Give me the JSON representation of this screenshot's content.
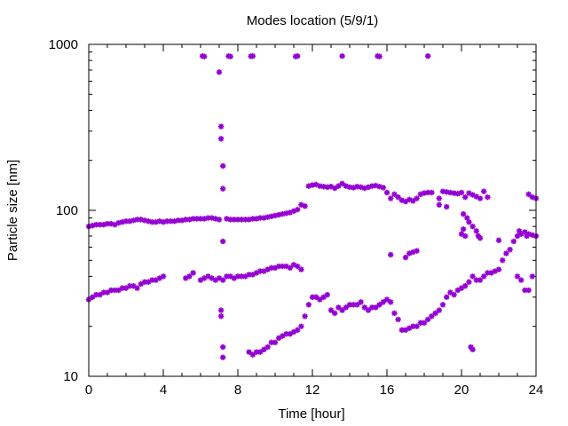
{
  "chart_data": {
    "type": "scatter",
    "title": "Modes location (5/9/1)",
    "xlabel": "Time [hour]",
    "ylabel": "Particle size [nm]",
    "xlim": [
      0,
      24
    ],
    "ylim": [
      10,
      1000
    ],
    "yscale": "log",
    "grid": false,
    "legend": "none",
    "x_ticks": [
      "0",
      "4",
      "8",
      "12",
      "16",
      "20",
      "24"
    ],
    "x_tick_values": [
      0,
      4,
      8,
      12,
      16,
      20,
      24
    ],
    "y_ticks": [
      "10",
      "100",
      "1000"
    ],
    "y_tick_values": [
      10,
      100,
      1000
    ],
    "marker_color": "#9400d3",
    "series": [
      {
        "points": [
          [
            0.0,
            80
          ],
          [
            0.2,
            81
          ],
          [
            0.4,
            82
          ],
          [
            0.6,
            82
          ],
          [
            0.8,
            82
          ],
          [
            1.0,
            83
          ],
          [
            1.2,
            83
          ],
          [
            1.4,
            82
          ],
          [
            1.6,
            84
          ],
          [
            1.8,
            85
          ],
          [
            2.0,
            86
          ],
          [
            2.2,
            86
          ],
          [
            2.4,
            87
          ],
          [
            2.6,
            88
          ],
          [
            2.8,
            88
          ],
          [
            3.0,
            87
          ],
          [
            3.2,
            86
          ],
          [
            3.4,
            85
          ],
          [
            3.6,
            85
          ],
          [
            3.8,
            86
          ],
          [
            4.0,
            85
          ],
          [
            4.2,
            86
          ],
          [
            4.4,
            86
          ],
          [
            4.6,
            86
          ],
          [
            4.8,
            87
          ],
          [
            5.0,
            87
          ],
          [
            5.2,
            88
          ],
          [
            5.4,
            88
          ],
          [
            5.6,
            89
          ],
          [
            5.8,
            89
          ],
          [
            6.0,
            89
          ],
          [
            6.2,
            89
          ],
          [
            6.4,
            90
          ],
          [
            6.6,
            90
          ],
          [
            6.8,
            89
          ],
          [
            7.0,
            88
          ],
          [
            7.4,
            89
          ],
          [
            7.6,
            88
          ],
          [
            7.8,
            88
          ],
          [
            8.0,
            88
          ],
          [
            8.2,
            88
          ],
          [
            8.4,
            88
          ],
          [
            8.6,
            88
          ],
          [
            8.8,
            89
          ],
          [
            9.0,
            89
          ],
          [
            9.2,
            90
          ],
          [
            9.4,
            90
          ],
          [
            9.6,
            91
          ],
          [
            9.8,
            92
          ],
          [
            10.0,
            93
          ],
          [
            10.2,
            94
          ],
          [
            10.4,
            95
          ],
          [
            10.6,
            96
          ],
          [
            10.8,
            97
          ],
          [
            11.0,
            99
          ],
          [
            11.2,
            101
          ],
          [
            11.4,
            108
          ],
          [
            11.6,
            106
          ],
          [
            11.8,
            140
          ],
          [
            12.0,
            142
          ],
          [
            12.2,
            143
          ],
          [
            12.4,
            140
          ],
          [
            12.6,
            139
          ],
          [
            12.8,
            138
          ],
          [
            13.0,
            139
          ],
          [
            13.2,
            136
          ],
          [
            13.4,
            140
          ],
          [
            13.6,
            145
          ],
          [
            13.8,
            140
          ],
          [
            14.0,
            138
          ],
          [
            14.2,
            137
          ],
          [
            14.4,
            139
          ],
          [
            14.6,
            138
          ],
          [
            14.8,
            136
          ],
          [
            15.0,
            138
          ],
          [
            15.2,
            140
          ],
          [
            15.4,
            141
          ],
          [
            15.6,
            139
          ],
          [
            15.8,
            137
          ],
          [
            16.0,
            128
          ],
          [
            16.2,
            118
          ],
          [
            16.4,
            125
          ],
          [
            16.6,
            120
          ],
          [
            16.8,
            115
          ],
          [
            17.0,
            113
          ],
          [
            17.2,
            116
          ],
          [
            17.4,
            114
          ],
          [
            17.6,
            118
          ],
          [
            17.8,
            125
          ],
          [
            18.0,
            127
          ],
          [
            18.2,
            128
          ],
          [
            18.4,
            128
          ],
          [
            18.8,
            118
          ],
          [
            19.0,
            130
          ],
          [
            19.2,
            129
          ],
          [
            19.4,
            128
          ],
          [
            19.6,
            127
          ],
          [
            19.8,
            126
          ],
          [
            20.0,
            128
          ],
          [
            20.2,
            120
          ],
          [
            20.4,
            127
          ],
          [
            20.6,
            124
          ],
          [
            20.8,
            121
          ],
          [
            21.0,
            118
          ],
          [
            21.2,
            130
          ],
          [
            21.4,
            120
          ],
          [
            23.6,
            125
          ],
          [
            23.8,
            120
          ],
          [
            24.0,
            118
          ]
        ]
      },
      {
        "points": [
          [
            0.0,
            29
          ],
          [
            0.2,
            30
          ],
          [
            0.4,
            31
          ],
          [
            0.6,
            31
          ],
          [
            0.8,
            32
          ],
          [
            1.0,
            32
          ],
          [
            1.2,
            33
          ],
          [
            1.4,
            33
          ],
          [
            1.6,
            33
          ],
          [
            1.8,
            34
          ],
          [
            2.0,
            34
          ],
          [
            2.2,
            35
          ],
          [
            2.4,
            35
          ],
          [
            2.6,
            34
          ],
          [
            2.8,
            36
          ],
          [
            3.0,
            37
          ],
          [
            3.2,
            37
          ],
          [
            3.4,
            38
          ],
          [
            3.6,
            38
          ],
          [
            3.8,
            39
          ],
          [
            4.0,
            40
          ],
          [
            5.2,
            39
          ],
          [
            5.4,
            40
          ],
          [
            5.6,
            42
          ],
          [
            6.0,
            38
          ],
          [
            6.2,
            39
          ],
          [
            6.4,
            40
          ],
          [
            6.6,
            39
          ],
          [
            6.8,
            38
          ],
          [
            7.0,
            39
          ],
          [
            7.2,
            38
          ],
          [
            7.4,
            40
          ],
          [
            7.6,
            40
          ],
          [
            7.8,
            39
          ],
          [
            8.0,
            40
          ],
          [
            8.2,
            40
          ],
          [
            8.4,
            40
          ],
          [
            8.6,
            41
          ],
          [
            8.8,
            41
          ],
          [
            9.0,
            42
          ],
          [
            9.2,
            43
          ],
          [
            9.4,
            43
          ],
          [
            9.6,
            44
          ],
          [
            9.8,
            45
          ],
          [
            10.0,
            45
          ],
          [
            10.2,
            46
          ],
          [
            10.4,
            46
          ],
          [
            10.6,
            46
          ],
          [
            10.8,
            45
          ],
          [
            11.0,
            47
          ],
          [
            11.2,
            46
          ],
          [
            11.4,
            44
          ]
        ]
      },
      {
        "points": [
          [
            8.6,
            14
          ],
          [
            8.8,
            13.5
          ],
          [
            9.0,
            14
          ],
          [
            9.2,
            14
          ],
          [
            9.4,
            14.5
          ],
          [
            9.6,
            15
          ],
          [
            9.8,
            16
          ],
          [
            10.0,
            16
          ],
          [
            10.2,
            17
          ],
          [
            10.4,
            17.5
          ],
          [
            10.6,
            18
          ],
          [
            10.8,
            18
          ],
          [
            11.0,
            18.5
          ],
          [
            11.2,
            19
          ],
          [
            11.4,
            20
          ],
          [
            11.6,
            23
          ],
          [
            11.8,
            27
          ],
          [
            12.0,
            30
          ],
          [
            12.2,
            30
          ],
          [
            12.4,
            29
          ],
          [
            12.6,
            30
          ],
          [
            12.8,
            31
          ],
          [
            13.0,
            25
          ],
          [
            13.2,
            24
          ],
          [
            13.4,
            26
          ],
          [
            13.6,
            25
          ],
          [
            13.8,
            26
          ],
          [
            14.0,
            27
          ],
          [
            14.2,
            27
          ],
          [
            14.4,
            27
          ],
          [
            14.6,
            28
          ],
          [
            14.8,
            26
          ],
          [
            15.0,
            25
          ],
          [
            15.2,
            26
          ],
          [
            15.4,
            26
          ],
          [
            15.6,
            27
          ],
          [
            15.8,
            28
          ],
          [
            16.0,
            29
          ],
          [
            16.2,
            28
          ],
          [
            16.4,
            24
          ],
          [
            16.6,
            22
          ],
          [
            16.8,
            19
          ],
          [
            17.0,
            19
          ],
          [
            17.2,
            19.5
          ],
          [
            17.4,
            20
          ],
          [
            17.6,
            20
          ],
          [
            17.8,
            21
          ],
          [
            18.0,
            21
          ],
          [
            18.2,
            22
          ],
          [
            18.4,
            23
          ],
          [
            18.6,
            24
          ],
          [
            18.8,
            25
          ],
          [
            19.0,
            27
          ],
          [
            19.2,
            30
          ],
          [
            19.4,
            32
          ],
          [
            19.6,
            31
          ],
          [
            19.8,
            33
          ],
          [
            20.0,
            34
          ],
          [
            20.2,
            35
          ],
          [
            20.4,
            37
          ],
          [
            20.6,
            40
          ],
          [
            20.8,
            38
          ],
          [
            21.0,
            38
          ],
          [
            21.2,
            40
          ],
          [
            21.4,
            42
          ],
          [
            21.6,
            42
          ],
          [
            21.8,
            43
          ],
          [
            22.0,
            44
          ],
          [
            22.2,
            50
          ],
          [
            22.4,
            55
          ],
          [
            22.6,
            58
          ],
          [
            22.8,
            65
          ],
          [
            23.0,
            70
          ],
          [
            23.2,
            72
          ],
          [
            23.4,
            74
          ],
          [
            23.6,
            72
          ],
          [
            23.8,
            71
          ],
          [
            24.0,
            70
          ]
        ]
      },
      {
        "points": [
          [
            6.1,
            850
          ],
          [
            6.2,
            845
          ],
          [
            7.0,
            680
          ],
          [
            7.5,
            850
          ],
          [
            7.6,
            845
          ],
          [
            8.7,
            848
          ],
          [
            8.8,
            850
          ],
          [
            11.1,
            845
          ],
          [
            11.2,
            850
          ],
          [
            13.6,
            850
          ],
          [
            15.5,
            850
          ],
          [
            15.6,
            845
          ],
          [
            18.2,
            850
          ],
          [
            7.1,
            320
          ],
          [
            7.1,
            270
          ],
          [
            7.2,
            185
          ],
          [
            7.2,
            135
          ],
          [
            7.2,
            65
          ],
          [
            7.1,
            25
          ],
          [
            7.1,
            23
          ],
          [
            7.2,
            15
          ],
          [
            7.2,
            13
          ],
          [
            16.2,
            54
          ],
          [
            17.0,
            52
          ],
          [
            17.2,
            55
          ],
          [
            17.4,
            56
          ],
          [
            17.6,
            57
          ],
          [
            20.0,
            72
          ],
          [
            20.1,
            77
          ],
          [
            20.2,
            70
          ],
          [
            20.3,
            90
          ],
          [
            20.4,
            85
          ],
          [
            20.6,
            80
          ],
          [
            20.8,
            75
          ],
          [
            20.9,
            70
          ],
          [
            21.0,
            68
          ],
          [
            22.0,
            66
          ],
          [
            23.0,
            40
          ],
          [
            23.2,
            38
          ],
          [
            23.4,
            33
          ],
          [
            23.6,
            33
          ],
          [
            23.8,
            40
          ],
          [
            20.5,
            15
          ],
          [
            20.6,
            14.5
          ],
          [
            19.2,
            105
          ],
          [
            18.8,
            108
          ],
          [
            20.1,
            95
          ],
          [
            23.1,
            75
          ],
          [
            23.5,
            70
          ]
        ]
      }
    ]
  }
}
